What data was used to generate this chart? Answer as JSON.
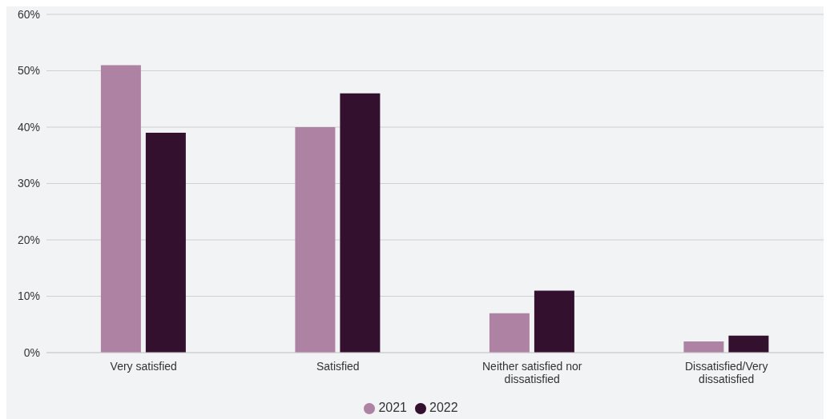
{
  "chart_data": {
    "type": "bar",
    "categories": [
      "Very satisfied",
      "Satisfied",
      "Neither satisfied nor dissatisfied",
      "Dissatisfied/Very dissatisfied"
    ],
    "series": [
      {
        "name": "2021",
        "color": "#ad82a3",
        "values": [
          51,
          40,
          7,
          2
        ]
      },
      {
        "name": "2022",
        "color": "#33112e",
        "values": [
          39,
          46,
          11,
          3
        ]
      }
    ],
    "ylim": [
      0,
      60
    ],
    "yticks": [
      {
        "value": 0,
        "label": "0%"
      },
      {
        "value": 10,
        "label": "10%"
      },
      {
        "value": 20,
        "label": "20%"
      },
      {
        "value": 30,
        "label": "30%"
      },
      {
        "value": 40,
        "label": "40%"
      },
      {
        "value": 50,
        "label": "50%"
      },
      {
        "value": 60,
        "label": "60%"
      }
    ],
    "grid": "y",
    "legend": "bottom"
  }
}
